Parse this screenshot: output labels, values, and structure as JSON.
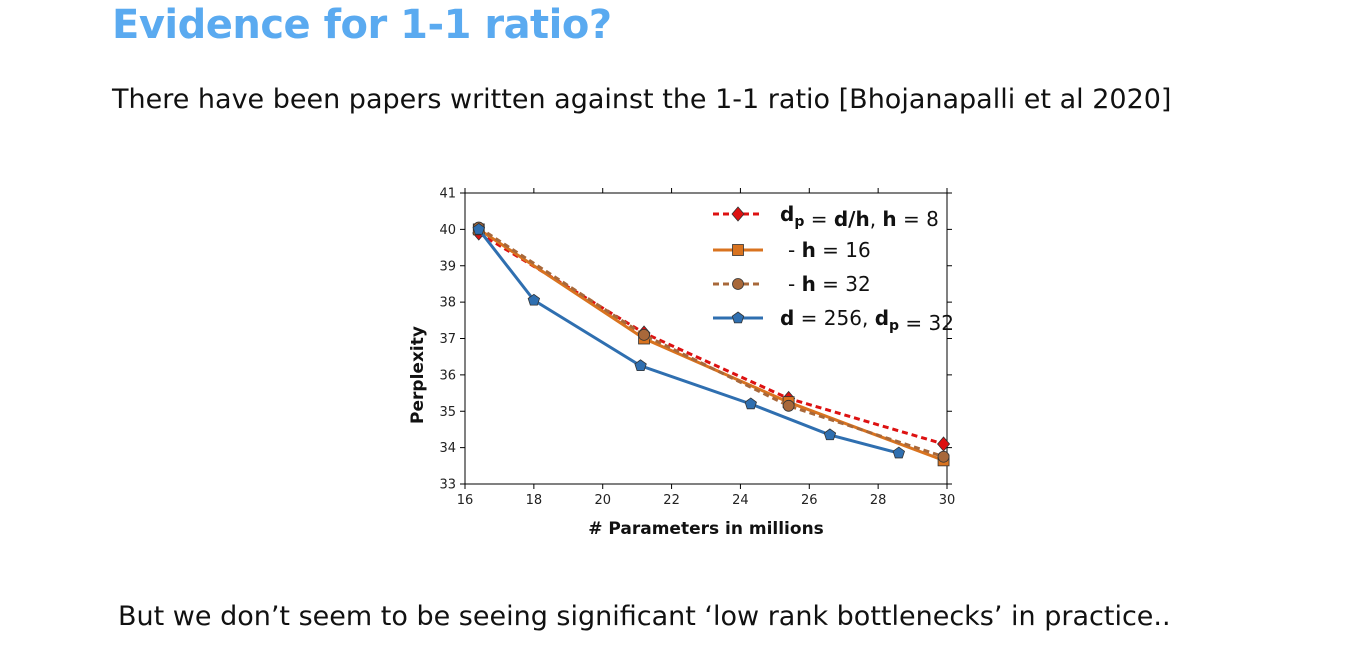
{
  "slide": {
    "title": "Evidence for 1-1 ratio?",
    "subtitle": "There have been papers written against the 1-1 ratio [Bhojanapalli et al 2020]",
    "footer": "But we don’t seem to be seeing significant ‘low rank bottlenecks’ in practice.."
  },
  "chart_data": {
    "type": "line",
    "title": "",
    "xlabel": "# Parameters in millions",
    "ylabel": "Perplexity",
    "xlim": [
      16,
      30
    ],
    "ylim": [
      33,
      41
    ],
    "xticks": [
      16,
      18,
      20,
      22,
      24,
      26,
      28,
      30
    ],
    "yticks": [
      33,
      34,
      35,
      36,
      37,
      38,
      39,
      40,
      41
    ],
    "grid": false,
    "legend_position": "top-right",
    "series": [
      {
        "name": "dp = d/h, h = 8",
        "legend_parts": [
          {
            "t": "d",
            "b": true
          },
          {
            "t": "p",
            "b": true,
            "sub": true
          },
          {
            "t": " = "
          },
          {
            "t": "d/h",
            "b": true
          },
          {
            "t": ", "
          },
          {
            "t": "h",
            "b": true
          },
          {
            "t": " = 8"
          }
        ],
        "color": "#dd1111",
        "dash": true,
        "marker": "diamond",
        "points": [
          [
            16.4,
            39.9
          ],
          [
            21.2,
            37.15
          ],
          [
            25.4,
            35.35
          ],
          [
            29.9,
            34.1
          ]
        ]
      },
      {
        "name": "- h = 16",
        "legend_parts": [
          {
            "t": "- "
          },
          {
            "t": "h",
            "b": true
          },
          {
            "t": " = 16"
          }
        ],
        "color": "#d9731f",
        "dash": false,
        "marker": "square",
        "points": [
          [
            16.4,
            40.0
          ],
          [
            21.2,
            37.0
          ],
          [
            25.4,
            35.25
          ],
          [
            29.9,
            33.65
          ]
        ]
      },
      {
        "name": "- h = 32",
        "legend_parts": [
          {
            "t": "- "
          },
          {
            "t": "h",
            "b": true
          },
          {
            "t": " = 32"
          }
        ],
        "color": "#a8683a",
        "dash": true,
        "marker": "circle",
        "points": [
          [
            16.4,
            40.05
          ],
          [
            21.2,
            37.1
          ],
          [
            25.4,
            35.15
          ],
          [
            29.9,
            33.75
          ]
        ]
      },
      {
        "name": "d = 256, dp = 32",
        "legend_parts": [
          {
            "t": "d",
            "b": true
          },
          {
            "t": " = 256, "
          },
          {
            "t": "d",
            "b": true
          },
          {
            "t": "p",
            "b": true,
            "sub": true
          },
          {
            "t": " = 32"
          }
        ],
        "color": "#2f6fb0",
        "dash": false,
        "marker": "pentagon",
        "points": [
          [
            16.4,
            40.0
          ],
          [
            18.0,
            38.05
          ],
          [
            21.1,
            36.25
          ],
          [
            24.3,
            35.2
          ],
          [
            26.6,
            34.35
          ],
          [
            28.6,
            33.85
          ]
        ]
      }
    ]
  }
}
